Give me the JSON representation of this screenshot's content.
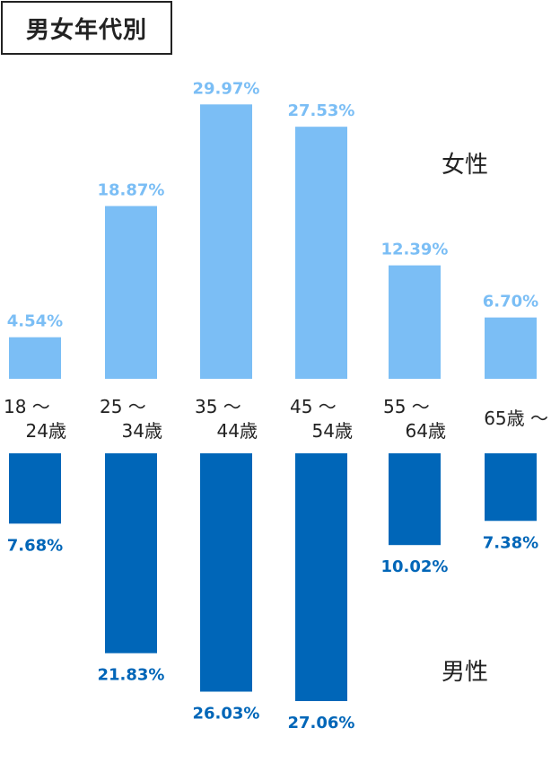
{
  "title": "男女年代別",
  "colors": {
    "female": "#7bbef5",
    "male": "#0066b8",
    "text": "#222222"
  },
  "chart_data": {
    "type": "bar",
    "categories": [
      [
        "18 ～",
        "24歳"
      ],
      [
        "25 ～",
        "34歳"
      ],
      [
        "35 ～",
        "44歳"
      ],
      [
        "45 ～",
        "54歳"
      ],
      [
        "55 ～",
        "64歳"
      ],
      [
        "65歳 ～"
      ]
    ],
    "series": [
      {
        "name": "女性",
        "values": [
          4.54,
          18.87,
          29.97,
          27.53,
          12.39,
          6.7
        ],
        "labels": [
          "4.54%",
          "18.87%",
          "29.97%",
          "27.53%",
          "12.39%",
          "6.70%"
        ]
      },
      {
        "name": "男性",
        "values": [
          7.68,
          21.83,
          26.03,
          27.06,
          10.02,
          7.38
        ],
        "labels": [
          "7.68%",
          "21.83%",
          "26.03%",
          "27.06%",
          "10.02%",
          "7.38%"
        ]
      }
    ]
  }
}
